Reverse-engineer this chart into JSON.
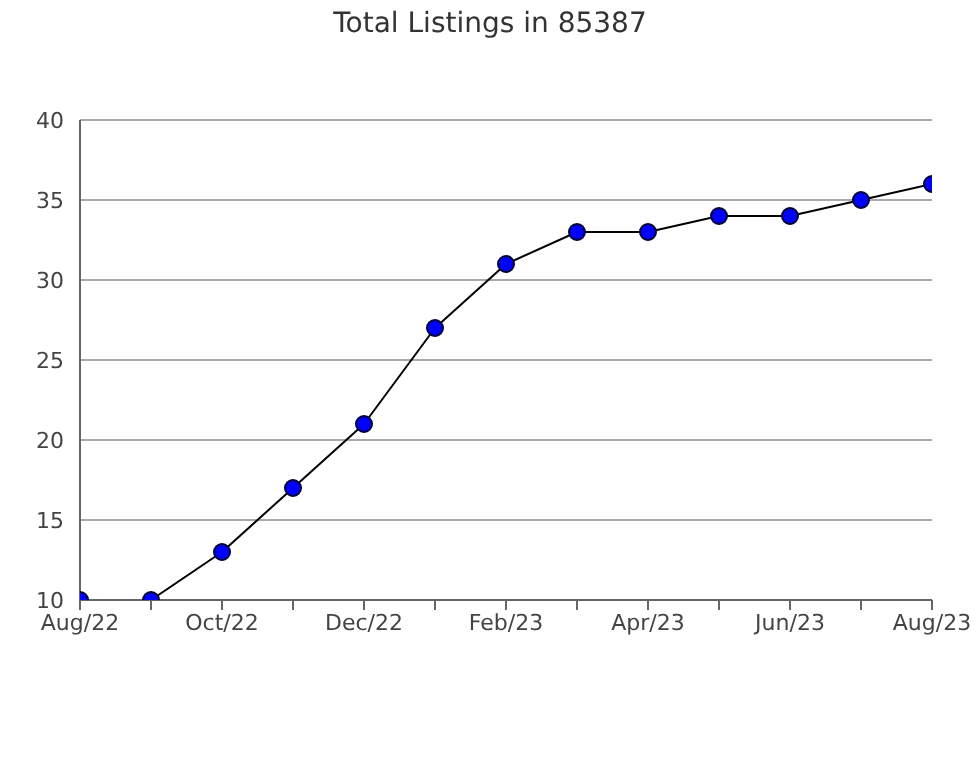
{
  "chart_data": {
    "type": "line",
    "title": "Total Listings in 85387",
    "categories": [
      "Aug/22",
      null,
      "Oct/22",
      null,
      "Dec/22",
      null,
      "Feb/23",
      null,
      "Apr/23",
      null,
      "Jun/23",
      null,
      "Aug/23"
    ],
    "series": [
      {
        "color": "#0000ff",
        "values": [
          10,
          10,
          13,
          17,
          21,
          27,
          31,
          33,
          33,
          34,
          34,
          35,
          36
        ]
      }
    ],
    "ylim": [
      10,
      40
    ],
    "yticks": [
      10,
      15,
      20,
      25,
      30,
      35,
      40
    ],
    "grid": "y",
    "marker": "circle",
    "line_style": "solid",
    "legend": false
  }
}
